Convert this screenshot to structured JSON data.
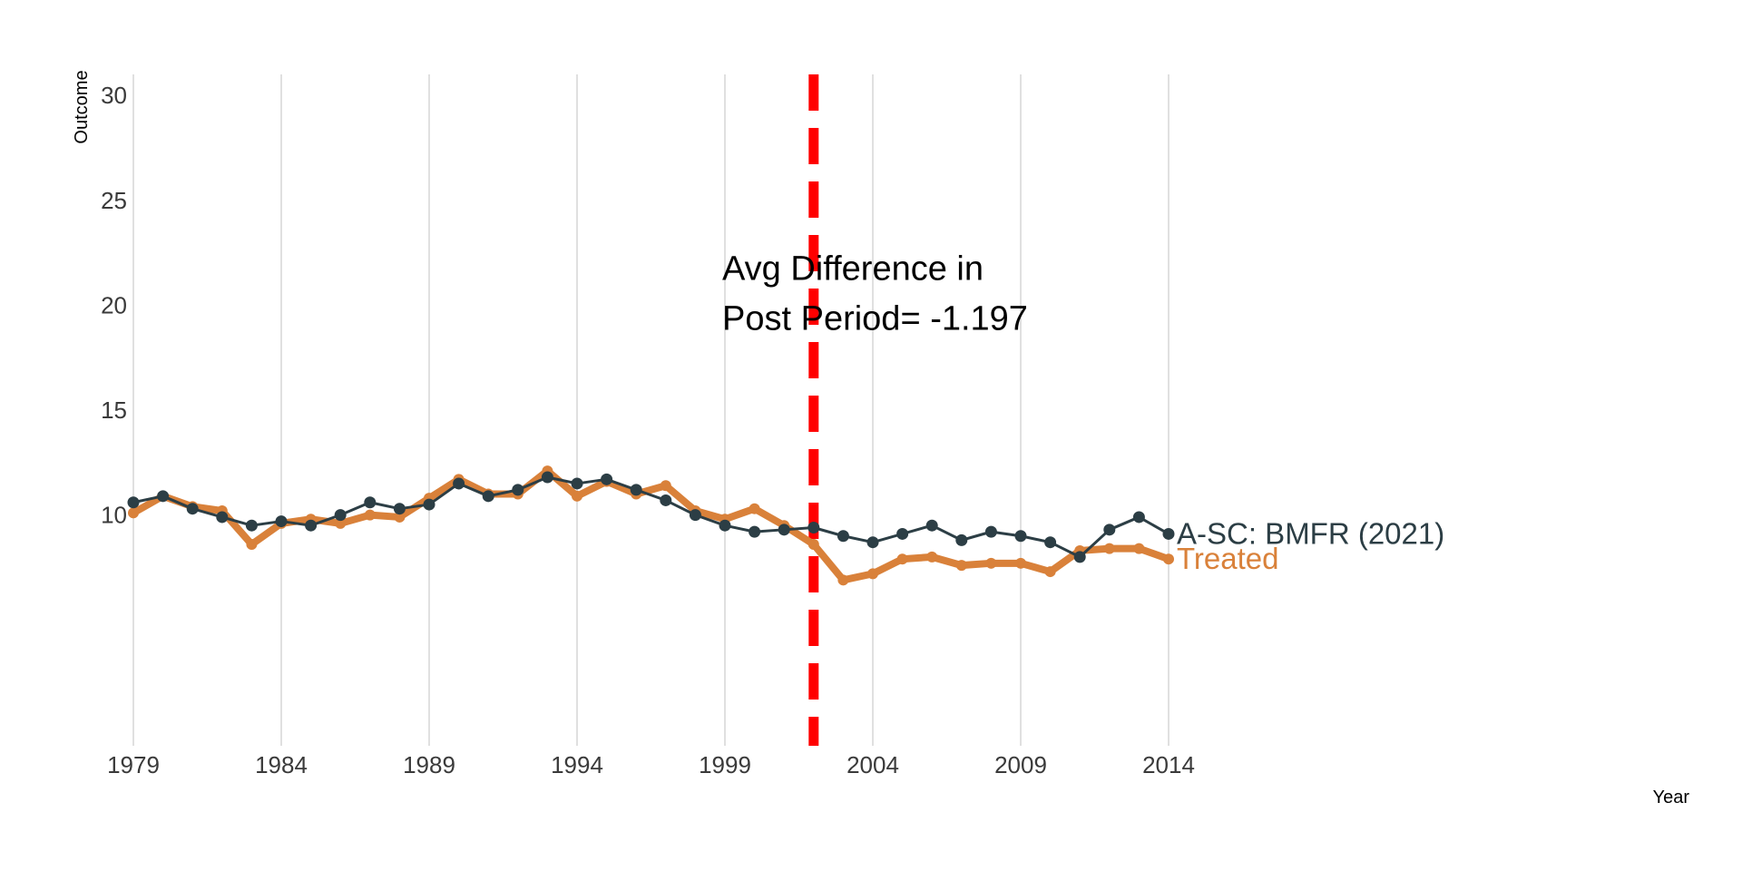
{
  "chart_data": {
    "type": "line",
    "title": "",
    "xlabel": "Year",
    "ylabel": "Outcome",
    "xlim": [
      1979,
      2014
    ],
    "ylim": [
      -1,
      31
    ],
    "x_ticks": [
      1979,
      1984,
      1989,
      1994,
      1999,
      2004,
      2009,
      2014
    ],
    "y_ticks": [
      10,
      15,
      20,
      25,
      30
    ],
    "grid": "vertical",
    "legend": "none (end-of-line labels)",
    "x": [
      1979,
      1980,
      1981,
      1982,
      1983,
      1984,
      1985,
      1986,
      1987,
      1988,
      1989,
      1990,
      1991,
      1992,
      1993,
      1994,
      1995,
      1996,
      1997,
      1998,
      1999,
      2000,
      2001,
      2002,
      2003,
      2004,
      2005,
      2006,
      2007,
      2008,
      2009,
      2010,
      2011,
      2012,
      2013,
      2014
    ],
    "series": [
      {
        "name": "A-SC: BMFR (2021)",
        "color": "#2c3e45",
        "values": [
          10.6,
          10.9,
          10.3,
          9.9,
          9.5,
          9.7,
          9.5,
          10.0,
          10.6,
          10.3,
          10.5,
          11.5,
          10.9,
          11.2,
          11.8,
          11.5,
          11.7,
          11.2,
          10.7,
          10.0,
          9.5,
          9.2,
          9.3,
          9.4,
          9.0,
          8.7,
          9.1,
          9.5,
          8.8,
          9.2,
          9.0,
          8.7,
          8.0,
          9.3,
          9.9,
          9.1
        ]
      },
      {
        "name": "Treated",
        "color": "#d9813a",
        "values": [
          10.1,
          10.9,
          10.4,
          10.2,
          8.6,
          9.6,
          9.8,
          9.6,
          10.0,
          9.9,
          10.8,
          11.7,
          11.0,
          11.0,
          12.1,
          10.9,
          11.6,
          11.0,
          11.4,
          10.2,
          9.8,
          10.3,
          9.5,
          8.6,
          6.9,
          7.2,
          7.9,
          8.0,
          7.6,
          7.7,
          7.7,
          7.3,
          8.3,
          8.4,
          8.4,
          7.9
        ]
      }
    ],
    "vline": {
      "x": 2002,
      "color": "#ff0000",
      "style": "dashed"
    },
    "annotation": {
      "lines": [
        "Avg Difference in",
        "Post Period= -1.197"
      ],
      "x": 1999,
      "y": 20
    }
  }
}
